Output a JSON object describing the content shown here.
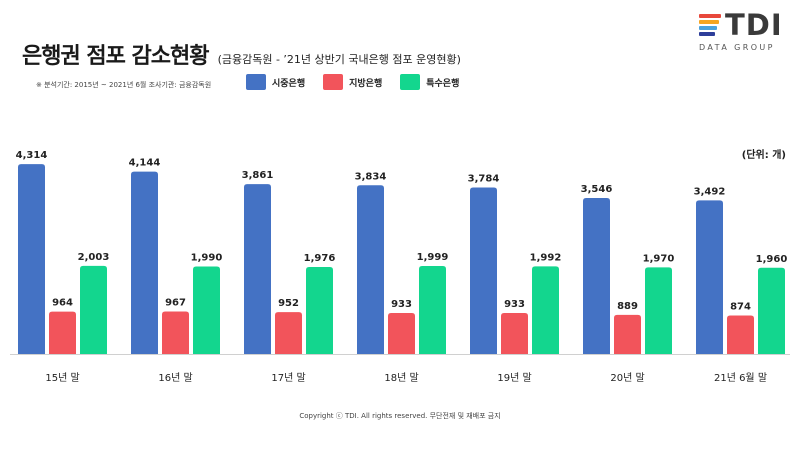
{
  "header": {
    "title": "은행권 점포 감소현황",
    "subtitle": "(금융감독원 - ’21년 상반기 국내은행 점포 운영현황)",
    "meta": "※ 분석기간: 2015년 ~ 2021년 6월  조사기관: 금융감독원",
    "unit": "(단위: 개)"
  },
  "logo": {
    "name": "TDI",
    "sub": "DATA GROUP",
    "colors": [
      "#e8483b",
      "#f5a623",
      "#4aa3df",
      "#2e3e9a"
    ]
  },
  "footer": {
    "copyright": "Copyright ⓒ TDI. All rights reserved. 무단전재 및 재배포 금지"
  },
  "chart_data": {
    "type": "bar",
    "categories": [
      "15년 말",
      "16년 말",
      "17년 말",
      "18년 말",
      "19년 말",
      "20년 말",
      "21년 6월 말"
    ],
    "series": [
      {
        "name": "시중은행",
        "color": "#4472c4",
        "values": [
          4314,
          4144,
          3861,
          3834,
          3784,
          3546,
          3492
        ]
      },
      {
        "name": "지방은행",
        "color": "#f2545b",
        "values": [
          964,
          967,
          952,
          933,
          933,
          889,
          874
        ]
      },
      {
        "name": "특수은행",
        "color": "#13d68e",
        "values": [
          2003,
          1990,
          1976,
          1999,
          1992,
          1970,
          1960
        ]
      }
    ],
    "ylim": [
      0,
      4500
    ],
    "grid": false,
    "legend": "top-left"
  }
}
